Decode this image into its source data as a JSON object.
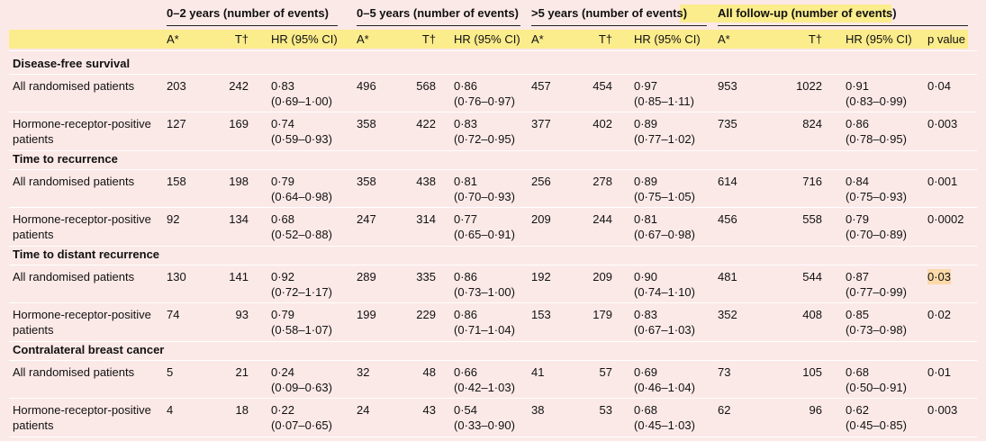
{
  "header": {
    "groups": [
      "0–2 years (number of events)",
      "0–5 years (number of events)",
      ">5 years (number of events)",
      "All follow-up (number of events)"
    ],
    "columns": [
      "A*",
      "T†",
      "HR (95% CI)",
      "A*",
      "T†",
      "HR (95% CI)",
      "A*",
      "T†",
      "HR (95% CI)",
      "A*",
      "T†",
      "HR (95% CI)",
      "p value"
    ]
  },
  "sections": [
    {
      "title": "Disease-free survival",
      "rows": [
        {
          "label": "All randomised patients",
          "cells": [
            203,
            242,
            "0·83",
            "(0·69–1·00)",
            496,
            568,
            "0·86",
            "(0·76–0·97)",
            457,
            454,
            "0·97",
            "(0·85–1·11)",
            953,
            1022,
            "0·91",
            "(0·83–0·99)",
            "0·04"
          ]
        },
        {
          "label": "Hormone-receptor-positive patients",
          "cells": [
            127,
            169,
            "0·74",
            "(0·59–0·93)",
            358,
            422,
            "0·83",
            "(0·72–0·95)",
            377,
            402,
            "0·89",
            "(0·77–1·02)",
            735,
            824,
            "0·86",
            "(0·78–0·95)",
            "0·003"
          ]
        }
      ]
    },
    {
      "title": "Time to recurrence",
      "rows": [
        {
          "label": "All randomised patients",
          "cells": [
            158,
            198,
            "0·79",
            "(0·64–0·98)",
            358,
            438,
            "0·81",
            "(0·70–0·93)",
            256,
            278,
            "0·89",
            "(0·75–1·05)",
            614,
            716,
            "0·84",
            "(0·75–0·93)",
            "0·001"
          ]
        },
        {
          "label": "Hormone-receptor-positive patients",
          "cells": [
            92,
            134,
            "0·68",
            "(0·52–0·88)",
            247,
            314,
            "0·77",
            "(0·65–0·91)",
            209,
            244,
            "0·81",
            "(0·67–0·98)",
            456,
            558,
            "0·79",
            "(0·70–0·89)",
            "0·0002"
          ]
        }
      ]
    },
    {
      "title": "Time to distant recurrence",
      "rows": [
        {
          "label": "All randomised patients",
          "cells": [
            130,
            141,
            "0·92",
            "(0·72–1·17)",
            289,
            335,
            "0·86",
            "(0·73–1·00)",
            192,
            209,
            "0·90",
            "(0·74–1·10)",
            481,
            544,
            "0·87",
            "(0·77–0·99)",
            "0·03"
          ]
        },
        {
          "label": "Hormone-receptor-positive patients",
          "cells": [
            74,
            93,
            "0·79",
            "(0·58–1·07)",
            199,
            229,
            "0·86",
            "(0·71–1·04)",
            153,
            179,
            "0·83",
            "(0·67–1·03)",
            352,
            408,
            "0·85",
            "(0·73–0·98)",
            "0·02"
          ]
        }
      ]
    },
    {
      "title": "Contralateral breast cancer",
      "rows": [
        {
          "label": "All randomised patients",
          "cells": [
            5,
            21,
            "0·24",
            "(0·09–0·63)",
            32,
            48,
            "0·66",
            "(0·42–1·03)",
            41,
            57,
            "0·69",
            "(0·46–1·04)",
            73,
            105,
            "0·68",
            "(0·50–0·91)",
            "0·01"
          ]
        },
        {
          "label": "Hormone-receptor-positive patients",
          "cells": [
            4,
            18,
            "0·22",
            "(0·07–0·65)",
            24,
            43,
            "0·54",
            "(0·33–0·90)",
            38,
            53,
            "0·68",
            "(0·45–1·03)",
            62,
            96,
            "0·62",
            "(0·45–0·85)",
            "0·003"
          ]
        }
      ]
    }
  ]
}
